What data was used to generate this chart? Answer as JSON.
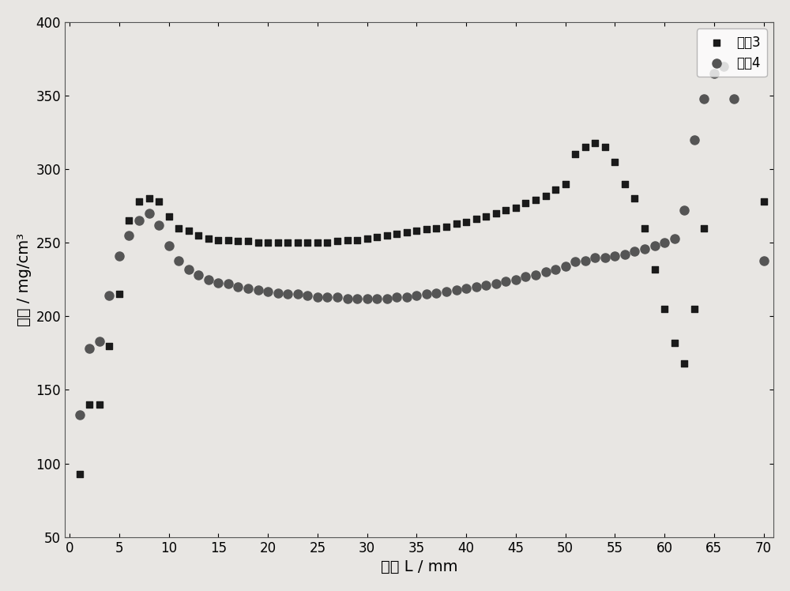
{
  "xlabel": "长度 L / mm",
  "ylabel": "密度 / mg/cm³",
  "xlim": [
    -0.5,
    71
  ],
  "ylim": [
    50,
    400
  ],
  "xticks": [
    0,
    5,
    10,
    15,
    20,
    25,
    30,
    35,
    40,
    45,
    50,
    55,
    60,
    65,
    70
  ],
  "yticks": [
    50,
    100,
    150,
    200,
    250,
    300,
    350,
    400
  ],
  "legend_labels": [
    "牌号3",
    "牌号4"
  ],
  "legend_loc": "upper right",
  "series1_color": "#1a1a1a",
  "series2_color": "#555555",
  "series1_marker": "s",
  "series2_marker": "o",
  "series1_x": [
    1,
    2,
    3,
    4,
    5,
    6,
    7,
    8,
    9,
    10,
    11,
    12,
    13,
    14,
    15,
    16,
    17,
    18,
    19,
    20,
    21,
    22,
    23,
    24,
    25,
    26,
    27,
    28,
    29,
    30,
    31,
    32,
    33,
    34,
    35,
    36,
    37,
    38,
    39,
    40,
    41,
    42,
    43,
    44,
    45,
    46,
    47,
    48,
    49,
    50,
    51,
    52,
    53,
    54,
    55,
    56,
    57,
    58,
    59,
    60,
    61,
    62,
    63,
    64,
    65,
    70
  ],
  "series1_y": [
    93,
    140,
    140,
    180,
    215,
    265,
    278,
    280,
    278,
    268,
    260,
    258,
    255,
    253,
    252,
    252,
    251,
    251,
    250,
    250,
    250,
    250,
    250,
    250,
    250,
    250,
    251,
    252,
    252,
    253,
    254,
    255,
    256,
    257,
    258,
    259,
    260,
    261,
    263,
    264,
    266,
    268,
    270,
    272,
    274,
    277,
    279,
    282,
    286,
    290,
    310,
    315,
    318,
    315,
    305,
    290,
    280,
    260,
    232,
    205,
    182,
    168,
    205,
    260,
    365,
    278
  ],
  "series2_x": [
    1,
    2,
    3,
    4,
    5,
    6,
    7,
    8,
    9,
    10,
    11,
    12,
    13,
    14,
    15,
    16,
    17,
    18,
    19,
    20,
    21,
    22,
    23,
    24,
    25,
    26,
    27,
    28,
    29,
    30,
    31,
    32,
    33,
    34,
    35,
    36,
    37,
    38,
    39,
    40,
    41,
    42,
    43,
    44,
    45,
    46,
    47,
    48,
    49,
    50,
    51,
    52,
    53,
    54,
    55,
    56,
    57,
    58,
    59,
    60,
    61,
    62,
    63,
    64,
    65,
    66,
    67,
    70
  ],
  "series2_y": [
    133,
    178,
    183,
    214,
    241,
    255,
    265,
    270,
    262,
    248,
    238,
    232,
    228,
    225,
    223,
    222,
    220,
    219,
    218,
    217,
    216,
    215,
    215,
    214,
    213,
    213,
    213,
    212,
    212,
    212,
    212,
    212,
    213,
    213,
    214,
    215,
    216,
    217,
    218,
    219,
    220,
    221,
    222,
    224,
    225,
    227,
    228,
    230,
    232,
    234,
    237,
    238,
    240,
    240,
    241,
    242,
    244,
    246,
    248,
    250,
    253,
    272,
    320,
    348,
    365,
    370,
    348,
    238
  ],
  "bg_color": "#e8e6e3",
  "xlabel_fontsize": 14,
  "ylabel_fontsize": 14,
  "tick_fontsize": 12,
  "legend_fontsize": 12,
  "markersize1": 6,
  "markersize2": 8
}
